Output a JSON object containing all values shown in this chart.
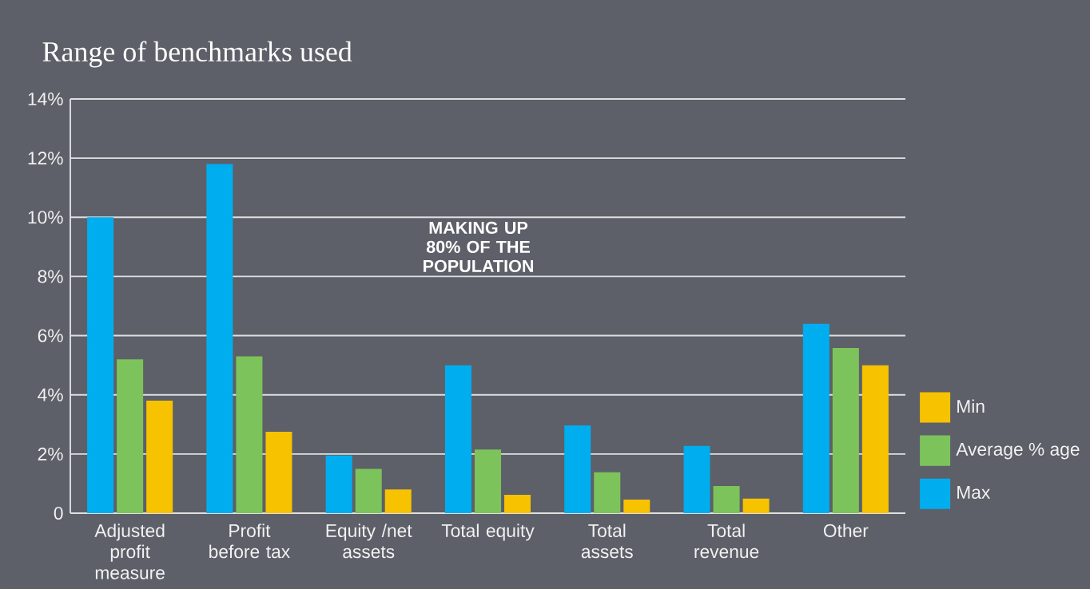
{
  "chart_data": {
    "type": "bar",
    "title": "Range of benchmarks used",
    "categories": [
      "Adjusted profit measure",
      "Profit before tax",
      "Equity /net assets",
      "Total equity",
      "Total assets",
      "Total revenue",
      "Other"
    ],
    "series": [
      {
        "name": "Max",
        "color": "#00aeef",
        "values": [
          10.0,
          11.8,
          1.95,
          5.0,
          2.97,
          2.27,
          6.4
        ]
      },
      {
        "name": "Average % age",
        "color": "#7dc35b",
        "values": [
          5.2,
          5.3,
          1.5,
          2.15,
          1.38,
          0.92,
          5.58
        ]
      },
      {
        "name": "Min",
        "color": "#f7c200",
        "values": [
          3.8,
          2.75,
          0.8,
          0.62,
          0.46,
          0.49,
          5.0
        ]
      }
    ],
    "ylim": [
      0,
      14
    ],
    "yticks": [
      0,
      {
        "value": 2,
        "label": "2%"
      },
      {
        "value": 4,
        "label": "4%"
      },
      {
        "value": 6,
        "label": "6%"
      },
      {
        "value": 8,
        "label": "8%"
      },
      {
        "value": 10,
        "label": "10%"
      },
      {
        "value": 12,
        "label": "12%"
      },
      {
        "value": 14,
        "label": "14%"
      }
    ],
    "grid": "y",
    "legend": "right",
    "annotations": [
      "MAKING UP 80% OF THE POPULATION"
    ]
  }
}
